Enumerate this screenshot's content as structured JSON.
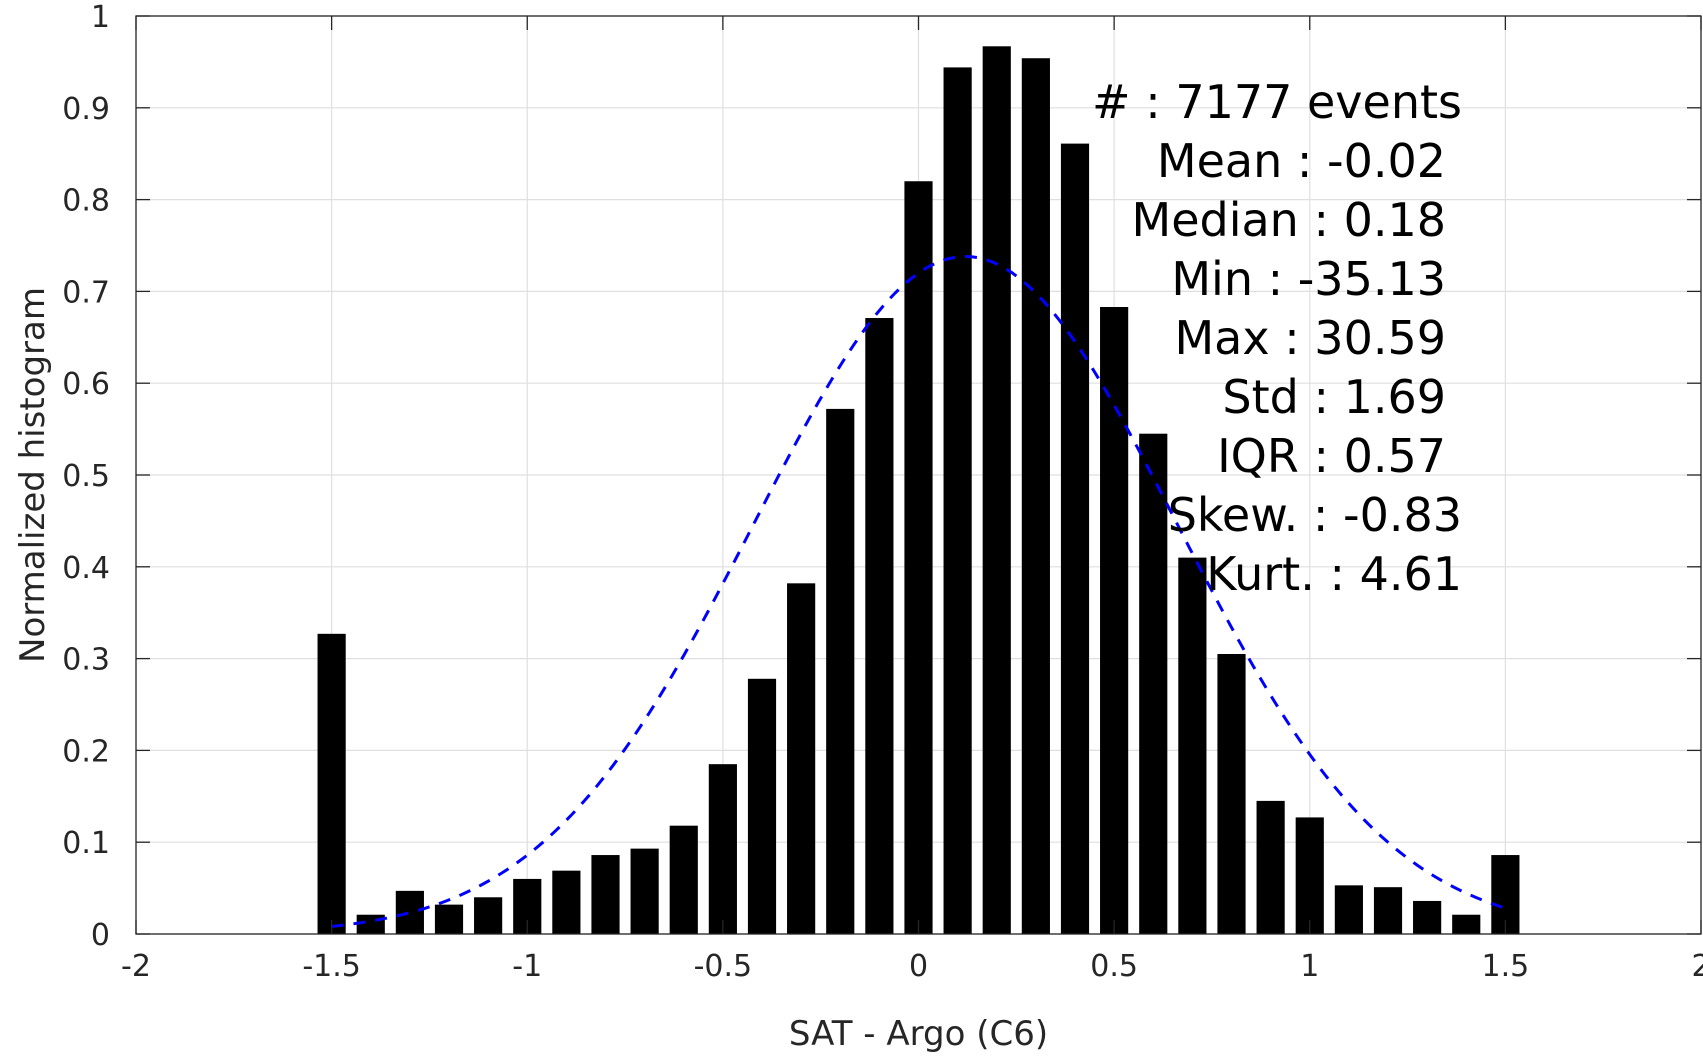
{
  "chart_data": {
    "type": "bar",
    "xlabel": "SAT - Argo (C6)",
    "ylabel": "Normalized histogram",
    "xlim": [
      -2,
      2
    ],
    "ylim": [
      0,
      1
    ],
    "xticks": [
      "-2",
      "-1.5",
      "-1",
      "-0.5",
      "0",
      "0.5",
      "1",
      "1.5",
      "2"
    ],
    "yticks": [
      "0",
      "0.1",
      "0.2",
      "0.3",
      "0.4",
      "0.5",
      "0.6",
      "0.7",
      "0.8",
      "0.9",
      "1"
    ],
    "grid": true,
    "bar_color": "#000000",
    "fit_color": "#0000ff",
    "bars": {
      "x": [
        -1.5,
        -1.4,
        -1.3,
        -1.2,
        -1.1,
        -1.0,
        -0.9,
        -0.8,
        -0.7,
        -0.6,
        -0.5,
        -0.4,
        -0.3,
        -0.2,
        -0.1,
        0.0,
        0.1,
        0.2,
        0.3,
        0.4,
        0.5,
        0.6,
        0.7,
        0.8,
        0.9,
        1.0,
        1.1,
        1.2,
        1.3,
        1.4,
        1.5
      ],
      "values": [
        0.327,
        0.021,
        0.047,
        0.032,
        0.04,
        0.06,
        0.069,
        0.086,
        0.093,
        0.118,
        0.185,
        0.278,
        0.382,
        0.572,
        0.671,
        0.82,
        0.944,
        0.967,
        0.954,
        0.861,
        0.683,
        0.545,
        0.41,
        0.305,
        0.145,
        0.127,
        0.053,
        0.051,
        0.036,
        0.021,
        0.086
      ]
    },
    "fit_curve": {
      "style": "dashed",
      "x_range": [
        -1.5,
        1.5
      ],
      "mean": 0.12,
      "std": 0.54,
      "peak": 0.738
    },
    "annotations": [
      "#  : 7177 events",
      "Mean : -0.02",
      "Median : 0.18",
      "Min : -35.13",
      "Max : 30.59",
      "Std : 1.69",
      "IQR : 0.57",
      "Skew. : -0.83",
      "Kurt. : 4.61"
    ]
  }
}
